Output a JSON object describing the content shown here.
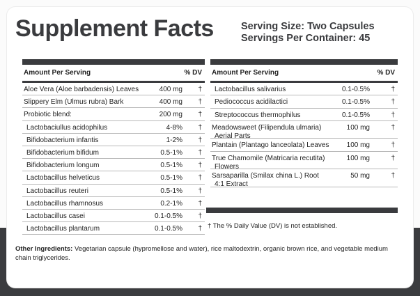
{
  "title": "Supplement Facts",
  "serving_size": "Serving Size: Two Capsules",
  "servings_per_container": "Servings Per Container: 45",
  "header": {
    "amount_per_serving": "Amount Per Serving",
    "dv": "% DV"
  },
  "left_rows": [
    {
      "name": "Aloe Vera (Aloe barbadensis) Leaves",
      "amount": "400 mg",
      "dv": "†"
    },
    {
      "name": "Slippery Elm (Ulmus rubra) Bark",
      "amount": "400 mg",
      "dv": "†"
    },
    {
      "name": "Probiotic blend:",
      "amount": "200 mg",
      "dv": "†"
    },
    {
      "name": "Lactobaciullus acidophilus",
      "amount": "4-8%",
      "dv": "†"
    },
    {
      "name": "Bifidobacterium infantis",
      "amount": "1-2%",
      "dv": "†"
    },
    {
      "name": "Bifidobacterium bifidum",
      "amount": "0.5-1%",
      "dv": "†"
    },
    {
      "name": "Bifidobacterium longum",
      "amount": "0.5-1%",
      "dv": "†"
    },
    {
      "name": "Lactobacillus helveticus",
      "amount": "0.5-1%",
      "dv": "†"
    },
    {
      "name": "Lactobacillus reuteri",
      "amount": "0.5-1%",
      "dv": "†"
    },
    {
      "name": "Lactobacillus rhamnosus",
      "amount": "0.2-1%",
      "dv": "†"
    },
    {
      "name": "Lactobacillus casei",
      "amount": "0.1-0.5%",
      "dv": "†"
    },
    {
      "name": "Lactobacillus plantarum",
      "amount": "0.1-0.5%",
      "dv": "†"
    }
  ],
  "right_rows": [
    {
      "name": "Lactobacillus salivarius",
      "amount": "0.1-0.5%",
      "dv": "†"
    },
    {
      "name": "Pediococcus acidilactici",
      "amount": "0.1-0.5%",
      "dv": "†"
    },
    {
      "name": "Streptococcus thermophilus",
      "amount": "0.1-0.5%",
      "dv": "†"
    },
    {
      "name": "Meadowsweet (Filipendula ulmaria)",
      "name2": "Aerial Parts",
      "amount": "100 mg",
      "dv": "†"
    },
    {
      "name": "Plantain (Plantago lanceolata) Leaves",
      "amount": "100 mg",
      "dv": "†"
    },
    {
      "name": "True Chamomile (Matricaria recutita)",
      "name2": "Flowers",
      "amount": "100 mg",
      "dv": "†"
    },
    {
      "name": "Sarsaparilla (Smilax china L.) Root",
      "name2": "4:1 Extract",
      "amount": "50 mg",
      "dv": "†"
    }
  ],
  "footnote": "† The % Daily Value (DV) is not established.",
  "other_ingredients_label": "Other Ingredients:",
  "other_ingredients_text": "Vegetarian capsule (hypromellose and water), rice maltodextrin, organic brown rice, and vegetable medium chain triglycerides."
}
